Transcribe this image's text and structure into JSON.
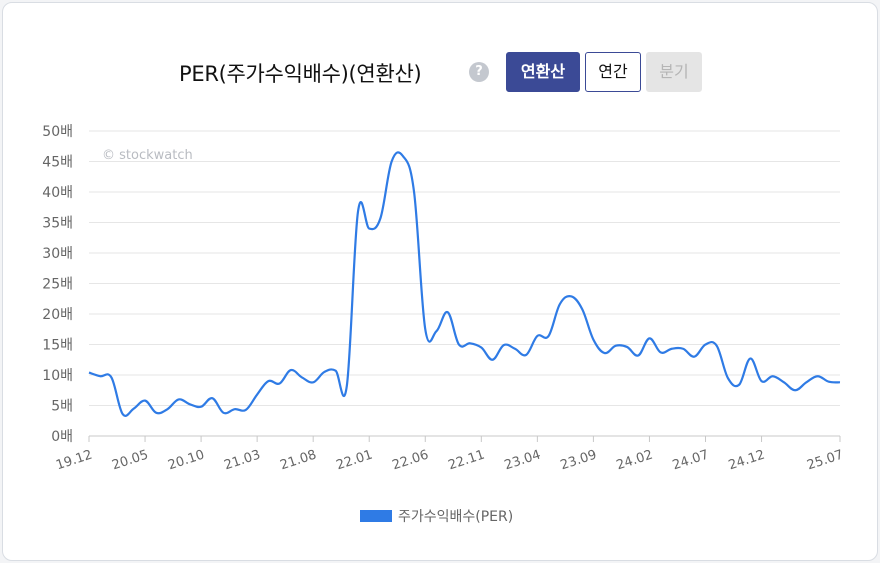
{
  "header": {
    "title": "PER(주가수익배수)(연환산)",
    "help_icon_glyph": "?",
    "tabs": [
      {
        "label": "연환산",
        "state": "active"
      },
      {
        "label": "연간",
        "state": "normal"
      },
      {
        "label": "분기",
        "state": "disabled"
      }
    ]
  },
  "colors": {
    "line": "#2f7be5",
    "active_tab": "#3b4a96",
    "grid": "#e6e6e6"
  },
  "watermark": "© stockwatch",
  "legend": {
    "label": "주가수익배수(PER)",
    "color": "#2f7be5"
  },
  "chart_data": {
    "type": "line",
    "title": "PER(주가수익배수)(연환산)",
    "xlabel": "",
    "ylabel": "",
    "y_unit_suffix": "배",
    "ylim": [
      0,
      50
    ],
    "y_ticks": [
      0,
      5,
      10,
      15,
      20,
      25,
      30,
      35,
      40,
      45,
      50
    ],
    "x_tick_labels": [
      "19.12",
      "20.05",
      "20.10",
      "21.03",
      "21.08",
      "22.01",
      "22.06",
      "22.11",
      "23.04",
      "23.09",
      "24.02",
      "24.07",
      "24.12",
      "25.07"
    ],
    "grid": true,
    "legend_position": "bottom",
    "series": [
      {
        "name": "주가수익배수(PER)",
        "points": [
          [
            "19.12",
            10.4
          ],
          [
            "20.01",
            9.8
          ],
          [
            "20.02",
            9.6
          ],
          [
            "20.03",
            3.6
          ],
          [
            "20.04",
            4.5
          ],
          [
            "20.05",
            5.8
          ],
          [
            "20.06",
            3.8
          ],
          [
            "20.07",
            4.4
          ],
          [
            "20.08",
            6.0
          ],
          [
            "20.09",
            5.2
          ],
          [
            "20.10",
            4.8
          ],
          [
            "20.11",
            6.2
          ],
          [
            "20.12",
            3.8
          ],
          [
            "21.01",
            4.4
          ],
          [
            "21.02",
            4.3
          ],
          [
            "21.03",
            6.8
          ],
          [
            "21.04",
            9.0
          ],
          [
            "21.05",
            8.6
          ],
          [
            "21.06",
            10.8
          ],
          [
            "21.07",
            9.6
          ],
          [
            "21.08",
            8.8
          ],
          [
            "21.09",
            10.5
          ],
          [
            "21.10",
            10.7
          ],
          [
            "21.11",
            8.2
          ],
          [
            "21.12",
            36.8
          ],
          [
            "22.01",
            34.0
          ],
          [
            "22.02",
            35.7
          ],
          [
            "22.03",
            45.0
          ],
          [
            "22.04",
            45.9
          ],
          [
            "22.05",
            40.0
          ],
          [
            "22.06",
            17.5
          ],
          [
            "22.07",
            17.2
          ],
          [
            "22.08",
            20.3
          ],
          [
            "22.09",
            15.0
          ],
          [
            "22.10",
            15.2
          ],
          [
            "22.11",
            14.5
          ],
          [
            "22.12",
            12.5
          ],
          [
            "23.01",
            14.9
          ],
          [
            "23.02",
            14.3
          ],
          [
            "23.03",
            13.3
          ],
          [
            "23.04",
            16.4
          ],
          [
            "23.05",
            16.4
          ],
          [
            "23.06",
            21.6
          ],
          [
            "23.07",
            22.9
          ],
          [
            "23.08",
            20.8
          ],
          [
            "23.09",
            15.8
          ],
          [
            "23.10",
            13.6
          ],
          [
            "23.11",
            14.8
          ],
          [
            "23.12",
            14.6
          ],
          [
            "24.01",
            13.2
          ],
          [
            "24.02",
            16.0
          ],
          [
            "24.03",
            13.7
          ],
          [
            "24.04",
            14.3
          ],
          [
            "24.05",
            14.3
          ],
          [
            "24.06",
            13.0
          ],
          [
            "24.07",
            15.0
          ],
          [
            "24.08",
            14.8
          ],
          [
            "24.09",
            9.5
          ],
          [
            "24.10",
            8.4
          ],
          [
            "24.11",
            12.7
          ],
          [
            "24.12",
            9.0
          ],
          [
            "25.01",
            9.8
          ],
          [
            "25.02",
            8.8
          ],
          [
            "25.03",
            7.5
          ],
          [
            "25.04",
            8.8
          ],
          [
            "25.05",
            9.8
          ],
          [
            "25.06",
            8.9
          ],
          [
            "25.07",
            8.8
          ]
        ]
      }
    ]
  }
}
